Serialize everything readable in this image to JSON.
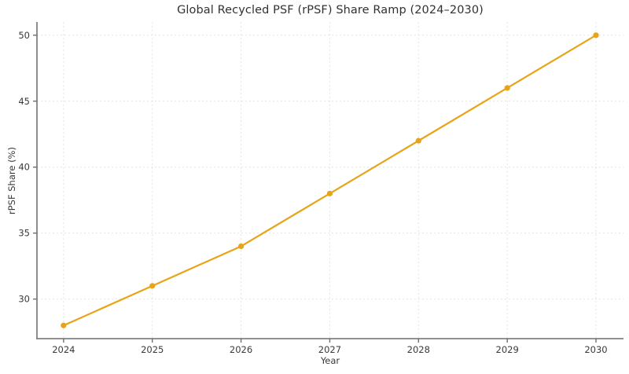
{
  "figure": {
    "background": "#ffffff"
  },
  "chart_data": {
    "type": "line",
    "title": "Global Recycled PSF (rPSF) Share Ramp (2024–2030)",
    "xlabel": "Year",
    "ylabel": "rPSF Share (%)",
    "x": [
      2024,
      2025,
      2026,
      2027,
      2028,
      2029,
      2030
    ],
    "x_tick_labels": [
      "2024",
      "2025",
      "2026",
      "2027",
      "2028",
      "2029",
      "2030"
    ],
    "y_ticks": [
      30,
      35,
      40,
      45,
      50
    ],
    "series": [
      {
        "name": "rPSF Share",
        "values": [
          28,
          31,
          34,
          38,
          42,
          46,
          50
        ],
        "color": "#E8A416",
        "marker": "circle"
      }
    ],
    "xlim": [
      2023.7,
      2030.31
    ],
    "ylim": [
      27,
      51
    ],
    "grid": true,
    "legend_position": "none",
    "colors": {
      "grid": "#e4e4e4",
      "spine": "#828282",
      "tick": "#6e6e6e",
      "tick_label": "#3a3a3a",
      "title": "#313131"
    }
  }
}
